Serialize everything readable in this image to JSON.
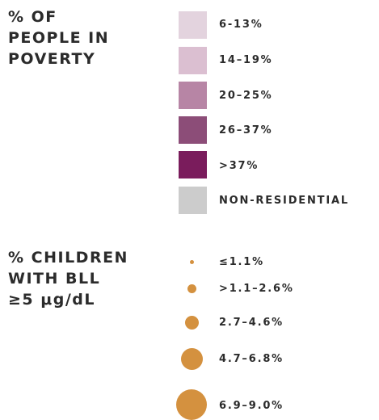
{
  "poverty_legend": {
    "title_lines": [
      "% OF",
      "PEOPLE IN",
      "POVERTY"
    ],
    "items": [
      {
        "label": "6-13%",
        "color": "#e3d3de"
      },
      {
        "label": "14–19%",
        "color": "#dbbfd1"
      },
      {
        "label": "20–25%",
        "color": "#b785a5"
      },
      {
        "label": "26–37%",
        "color": "#8c4d78"
      },
      {
        "label": ">37%",
        "color": "#7a1c5c"
      },
      {
        "label": "NON-RESIDENTIAL",
        "color": "#cccccc"
      }
    ]
  },
  "bll_legend": {
    "title_lines": [
      "% CHILDREN",
      "WITH BLL",
      "≥5 μg/dL"
    ],
    "color": "#d4913f",
    "items": [
      {
        "label": "≤1.1%"
      },
      {
        "label": ">1.1–2.6%"
      },
      {
        "label": "2.7–4.6%"
      },
      {
        "label": "4.7–6.8%"
      },
      {
        "label": "6.9–9.0%"
      }
    ]
  }
}
